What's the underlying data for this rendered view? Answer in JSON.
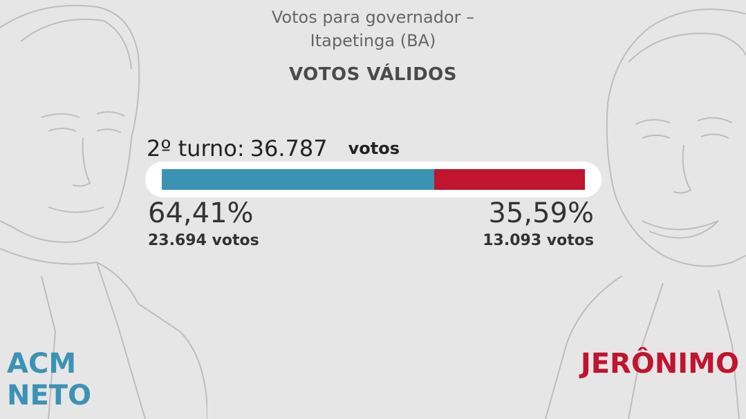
{
  "header": {
    "title": "Votos para governador –",
    "subtitle": "Itapetinga (BA)",
    "section": "VOTOS VÁLIDOS"
  },
  "turno": {
    "label": "2º turno:",
    "total": "36.787",
    "unit": "votos"
  },
  "candidates": {
    "left": {
      "name_line1": "ACM",
      "name_line2": "NETO",
      "pct_label": "64,41%",
      "votes_label": "23.694 votos"
    },
    "right": {
      "name_line1": "JERÔNIMO",
      "pct_label": "35,59%",
      "votes_label": "13.093 votos"
    }
  },
  "colors": {
    "left": "#3b93b4",
    "right": "#c0142f"
  },
  "chart_data": {
    "type": "bar",
    "orientation": "horizontal-stacked",
    "title": "Votos para governador – Itapetinga (BA)",
    "subtitle": "VOTOS VÁLIDOS",
    "categories": [
      "2º turno"
    ],
    "series": [
      {
        "name": "ACM NETO",
        "values": [
          64.41
        ],
        "votes": [
          23694
        ],
        "color": "#3b93b4"
      },
      {
        "name": "JERÔNIMO",
        "values": [
          35.59
        ],
        "votes": [
          13093
        ],
        "color": "#c0142f"
      }
    ],
    "total_votes": 36787,
    "xlim": [
      0,
      100
    ],
    "grid": false
  }
}
